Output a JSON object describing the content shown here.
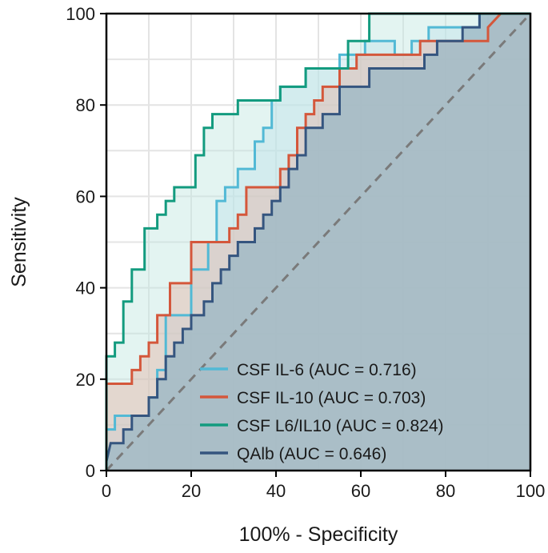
{
  "chart_data": {
    "type": "line",
    "subtype": "roc-curve",
    "title": "",
    "xlabel": "100% - Specificity",
    "ylabel": "Sensitivity",
    "xlim": [
      0,
      100
    ],
    "ylim": [
      0,
      100
    ],
    "xticks": [
      0,
      20,
      40,
      60,
      80,
      100
    ],
    "yticks": [
      0,
      20,
      40,
      60,
      80,
      100
    ],
    "grid": true,
    "legend_position": "bottom-right",
    "reference_line": {
      "style": "dashed",
      "color": "#7a7a7a",
      "from": [
        0,
        0
      ],
      "to": [
        100,
        100
      ]
    },
    "series": [
      {
        "name": "QAlb",
        "label": "QAlb (AUC = 0.646)",
        "auc": 0.646,
        "color": "#35557f",
        "fill": "#9fbac6",
        "x": [
          0,
          0,
          1,
          4,
          4,
          6,
          6,
          10,
          10,
          12,
          12,
          14,
          14,
          16,
          16,
          18,
          18,
          20,
          20,
          23,
          23,
          25,
          25,
          27,
          27,
          29,
          29,
          31,
          31,
          35,
          35,
          37,
          37,
          39,
          39,
          41,
          41,
          43,
          43,
          45,
          45,
          47,
          47,
          51,
          51,
          55,
          55,
          62,
          62,
          75,
          75,
          78,
          78,
          84,
          84,
          88,
          88,
          100
        ],
        "y": [
          0,
          2,
          6,
          6,
          9,
          9,
          12,
          12,
          16,
          16,
          20,
          20,
          25,
          25,
          28,
          28,
          31,
          31,
          34,
          34,
          37,
          37,
          41,
          41,
          44,
          44,
          47,
          47,
          50,
          50,
          53,
          53,
          56,
          56,
          59,
          59,
          62,
          62,
          66,
          66,
          69,
          69,
          75,
          75,
          78,
          78,
          84,
          84,
          88,
          88,
          91,
          91,
          94,
          94,
          97,
          97,
          100,
          100
        ]
      },
      {
        "name": "CSF IL-10",
        "label": "CSF IL-10 (AUC = 0.703)",
        "auc": 0.703,
        "color": "#d4573b",
        "fill": "#e3b4a6",
        "x": [
          0,
          0,
          6,
          6,
          8,
          8,
          10,
          10,
          12,
          12,
          15,
          15,
          20,
          20,
          23,
          23,
          29,
          29,
          31,
          31,
          33,
          33,
          41,
          41,
          43,
          43,
          45,
          45,
          47,
          47,
          49,
          49,
          51,
          51,
          55,
          55,
          59,
          59,
          67,
          67,
          74,
          74,
          84,
          84,
          90,
          90,
          93,
          100
        ],
        "y": [
          0,
          19,
          19,
          22,
          22,
          25,
          25,
          28,
          28,
          34,
          34,
          41,
          41,
          50,
          50,
          50,
          50,
          53,
          53,
          56,
          56,
          62,
          62,
          66,
          66,
          69,
          69,
          75,
          75,
          78,
          78,
          81,
          81,
          84,
          84,
          88,
          88,
          91,
          91,
          91,
          91,
          94,
          94,
          94,
          94,
          97,
          100,
          100
        ]
      },
      {
        "name": "CSF IL-6",
        "label": "CSF IL-6 (AUC = 0.716)",
        "auc": 0.716,
        "color": "#52b9d5",
        "fill": "#bfe3ea",
        "x": [
          0,
          0,
          2,
          2,
          10,
          10,
          12,
          12,
          14,
          14,
          20,
          20,
          24,
          24,
          26,
          26,
          28,
          28,
          31,
          31,
          35,
          35,
          37,
          37,
          39,
          39,
          41,
          41,
          47,
          47,
          51,
          51,
          55,
          55,
          61,
          61,
          68,
          68,
          72,
          72,
          76,
          76,
          84,
          84,
          88,
          88,
          92,
          92,
          100
        ],
        "y": [
          0,
          9,
          9,
          12,
          12,
          16,
          16,
          22,
          22,
          34,
          34,
          44,
          44,
          50,
          50,
          59,
          59,
          62,
          62,
          66,
          66,
          72,
          72,
          75,
          75,
          81,
          81,
          84,
          84,
          88,
          88,
          88,
          88,
          91,
          91,
          94,
          94,
          91,
          91,
          94,
          94,
          97,
          97,
          97,
          97,
          100,
          100,
          100,
          100
        ]
      },
      {
        "name": "CSF L6/IL10",
        "label": "CSF L6/IL10 (AUC = 0.824)",
        "auc": 0.824,
        "color": "#139b7f",
        "fill": "#c2e6e0",
        "x": [
          0,
          0,
          2,
          2,
          4,
          4,
          6,
          6,
          9,
          9,
          12,
          12,
          14,
          14,
          16,
          16,
          20,
          20,
          21,
          21,
          23,
          23,
          25,
          25,
          31,
          31,
          35,
          35,
          37,
          37,
          41,
          41,
          47,
          47,
          51,
          51,
          57,
          57,
          62,
          62,
          68,
          68,
          100
        ],
        "y": [
          0,
          25,
          25,
          28,
          28,
          37,
          37,
          44,
          44,
          53,
          53,
          56,
          56,
          59,
          59,
          62,
          62,
          62,
          62,
          69,
          69,
          75,
          75,
          78,
          78,
          81,
          81,
          81,
          81,
          81,
          81,
          84,
          84,
          88,
          88,
          88,
          88,
          94,
          94,
          100,
          100,
          100,
          100
        ]
      }
    ]
  }
}
